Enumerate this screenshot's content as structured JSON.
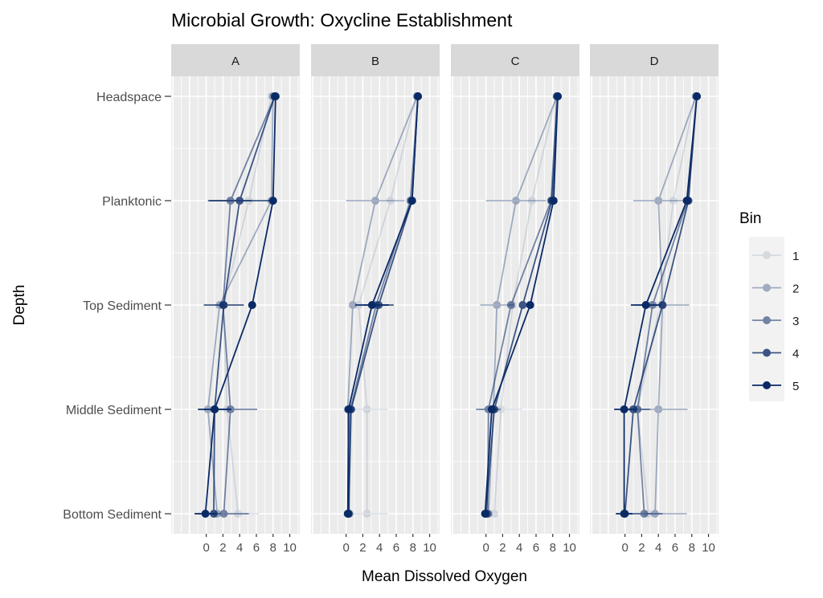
{
  "chart_data": {
    "type": "line",
    "title": "Microbial Growth: Oxycline Establishment",
    "xlabel": "Mean Dissolved Oxygen",
    "ylabel": "Depth",
    "xlim": [
      -4.2,
      11.2
    ],
    "x_ticks": [
      0,
      2,
      4,
      6,
      8,
      10
    ],
    "x_tick_labels": [
      "0",
      "2",
      "4",
      "6",
      "8",
      "10"
    ],
    "depths": [
      "Headspace",
      "Planktonic",
      "Top Sediment",
      "Middle Sediment",
      "Bottom Sediment"
    ],
    "legend": {
      "title": "Bin",
      "entries": [
        "1",
        "2",
        "3",
        "4",
        "5"
      ],
      "placement": "right"
    },
    "color": "#0a2a66",
    "bin_alpha": [
      0.12,
      0.35,
      0.55,
      0.78,
      1.0
    ],
    "panels": [
      {
        "name": "A",
        "series": [
          {
            "bin": "1",
            "values": [
              7.8,
              5.1,
              2.0,
              2.5,
              3.8
            ],
            "err": [
              0,
              0,
              0,
              0,
              2.5
            ]
          },
          {
            "bin": "2",
            "values": [
              8.0,
              7.8,
              1.6,
              0.2,
              1.3
            ],
            "err": [
              0,
              0,
              0,
              0,
              0
            ]
          },
          {
            "bin": "3",
            "values": [
              8.2,
              2.9,
              2.0,
              2.9,
              2.1
            ],
            "err": [
              0,
              2.5,
              0,
              3.2,
              3.0
            ]
          },
          {
            "bin": "4",
            "values": [
              8.2,
              4.0,
              2.1,
              1.0,
              0.9
            ],
            "err": [
              0,
              3.8,
              2.4,
              0,
              0
            ]
          },
          {
            "bin": "5",
            "values": [
              8.3,
              8.0,
              5.5,
              1.0,
              -0.1
            ],
            "err": [
              0,
              0,
              0,
              2.0,
              1.3
            ]
          }
        ]
      },
      {
        "name": "B",
        "series": [
          {
            "bin": "1",
            "values": [
              8.4,
              5.3,
              1.5,
              2.5,
              2.5
            ],
            "err": [
              0,
              0,
              0,
              2.5,
              2.5
            ]
          },
          {
            "bin": "2",
            "values": [
              8.5,
              3.5,
              0.8,
              0.2,
              0.4
            ],
            "err": [
              0,
              3.5,
              0,
              0,
              0
            ]
          },
          {
            "bin": "3",
            "values": [
              8.6,
              7.7,
              3.6,
              0.5,
              0.3
            ],
            "err": [
              0,
              0,
              0,
              0,
              0
            ]
          },
          {
            "bin": "4",
            "values": [
              8.6,
              7.9,
              3.9,
              0.6,
              0.3
            ],
            "err": [
              0,
              0,
              1.8,
              0,
              0
            ]
          },
          {
            "bin": "5",
            "values": [
              8.6,
              7.9,
              3.1,
              0.3,
              0.2
            ],
            "err": [
              0,
              0,
              2.0,
              0,
              0
            ]
          }
        ]
      },
      {
        "name": "C",
        "series": [
          {
            "bin": "1",
            "values": [
              8.4,
              5.5,
              3.2,
              1.8,
              1.0
            ],
            "err": [
              0,
              0,
              0,
              2.5,
              0
            ]
          },
          {
            "bin": "2",
            "values": [
              8.5,
              3.6,
              1.3,
              0.9,
              0.3
            ],
            "err": [
              0,
              3.6,
              2.0,
              0,
              0
            ]
          },
          {
            "bin": "3",
            "values": [
              8.5,
              7.8,
              3.0,
              0.3,
              0.2
            ],
            "err": [
              0,
              0,
              0,
              1.5,
              0
            ]
          },
          {
            "bin": "4",
            "values": [
              8.6,
              7.9,
              4.4,
              1.0,
              0.0
            ],
            "err": [
              0,
              0,
              0,
              0,
              0
            ]
          },
          {
            "bin": "5",
            "values": [
              8.6,
              8.1,
              5.3,
              0.7,
              -0.1
            ],
            "err": [
              0,
              0,
              0,
              0,
              0
            ]
          }
        ]
      },
      {
        "name": "D",
        "series": [
          {
            "bin": "1",
            "values": [
              8.4,
              5.8,
              4.2,
              1.5,
              2.8
            ],
            "err": [
              0,
              0,
              0,
              0,
              0
            ]
          },
          {
            "bin": "2",
            "values": [
              8.5,
              4.0,
              4.5,
              4.0,
              3.6
            ],
            "err": [
              0,
              3.0,
              3.2,
              3.5,
              3.8
            ]
          },
          {
            "bin": "3",
            "values": [
              8.6,
              7.5,
              3.3,
              1.5,
              2.3
            ],
            "err": [
              0,
              0,
              0,
              1.5,
              2.2
            ]
          },
          {
            "bin": "4",
            "values": [
              8.6,
              7.6,
              4.5,
              1.0,
              0.0
            ],
            "err": [
              0,
              0,
              0,
              0,
              0
            ]
          },
          {
            "bin": "5",
            "values": [
              8.6,
              7.4,
              2.5,
              -0.1,
              -0.1
            ],
            "err": [
              0,
              0,
              1.8,
              1.2,
              1.0
            ]
          }
        ]
      }
    ]
  }
}
